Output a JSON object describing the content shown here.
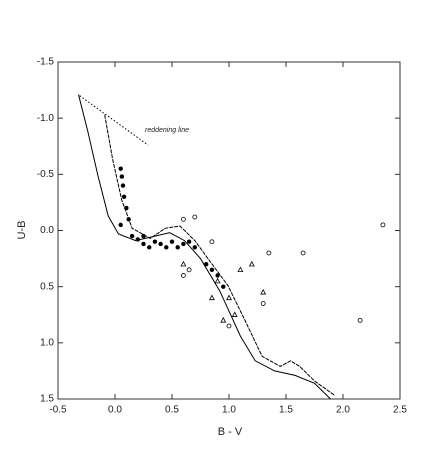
{
  "chart_data": {
    "type": "scatter",
    "xlabel": "B - V",
    "ylabel": "U-B",
    "annotation": "reddening line",
    "xlim": [
      -0.5,
      2.5
    ],
    "ylim": [
      1.5,
      -1.5
    ],
    "xticks": [
      -0.5,
      {
        "value": 0,
        "label": "0.0"
      },
      0.5,
      {
        "value": 1,
        "label": "1.0"
      },
      1.5,
      {
        "value": 2,
        "label": "2.0"
      },
      2.5
    ],
    "yticks": [
      -1.5,
      {
        "value": -1,
        "label": "-1.0"
      },
      -0.5,
      {
        "value": 0,
        "label": "0.0"
      },
      0.5,
      {
        "value": 1,
        "label": "1.0"
      },
      1.5
    ],
    "color": "#000000",
    "lines": [
      {
        "style": "solid",
        "x": [
          -0.32,
          -0.24,
          -0.15,
          -0.06,
          0.03,
          0.18,
          0.35,
          0.48,
          0.61,
          0.75,
          0.92,
          1.1,
          1.23,
          1.4,
          1.58,
          1.75,
          1.89
        ],
        "y": [
          -1.21,
          -0.89,
          -0.49,
          -0.13,
          0.03,
          0.09,
          0.05,
          0.02,
          0.09,
          0.25,
          0.54,
          0.94,
          1.16,
          1.25,
          1.29,
          1.36,
          1.5
        ]
      },
      {
        "style": "dashed",
        "x": [
          -0.09,
          -0.02,
          0.06,
          0.15,
          0.31,
          0.44,
          0.57,
          0.7,
          0.83,
          0.99,
          1.14,
          1.29,
          1.45,
          1.54,
          1.62,
          1.75,
          1.93
        ],
        "y": [
          -1.03,
          -0.63,
          -0.27,
          -0.02,
          0.07,
          -0.02,
          -0.04,
          0.09,
          0.27,
          0.49,
          0.8,
          1.12,
          1.21,
          1.16,
          1.21,
          1.34,
          1.47
        ]
      },
      {
        "style": "dotted",
        "x": [
          -0.31,
          0.29
        ],
        "y": [
          -1.2,
          -0.76
        ]
      }
    ],
    "series": [
      {
        "marker": "dot",
        "x": [
          0.05,
          0.06,
          0.07,
          0.08,
          0.1,
          0.12,
          0.15,
          0.2,
          0.25,
          0.3,
          0.35,
          0.4,
          0.5,
          0.55,
          0.6,
          0.65,
          0.7,
          0.8,
          0.85,
          0.9,
          0.95,
          0.05,
          0.25,
          0.45
        ],
        "y": [
          -0.55,
          -0.48,
          -0.4,
          -0.3,
          -0.2,
          -0.1,
          0.05,
          0.08,
          0.12,
          0.15,
          0.1,
          0.12,
          0.1,
          0.15,
          0.12,
          0.1,
          0.15,
          0.3,
          0.35,
          0.4,
          0.5,
          -0.05,
          0.05,
          0.15
        ]
      },
      {
        "marker": "triangle",
        "x": [
          0.9,
          1.0,
          1.05,
          0.95,
          1.1,
          1.2,
          0.85,
          1.3,
          0.6
        ],
        "y": [
          0.45,
          0.6,
          0.75,
          0.8,
          0.35,
          0.3,
          0.6,
          0.55,
          0.3
        ]
      },
      {
        "marker": "circle",
        "x": [
          0.6,
          0.7,
          0.6,
          1.3,
          1.35,
          1.65,
          2.15,
          2.35,
          1.0,
          0.85,
          0.65
        ],
        "y": [
          -0.1,
          -0.12,
          0.4,
          0.65,
          0.2,
          0.2,
          0.8,
          -0.05,
          0.85,
          0.1,
          0.35
        ]
      }
    ]
  }
}
